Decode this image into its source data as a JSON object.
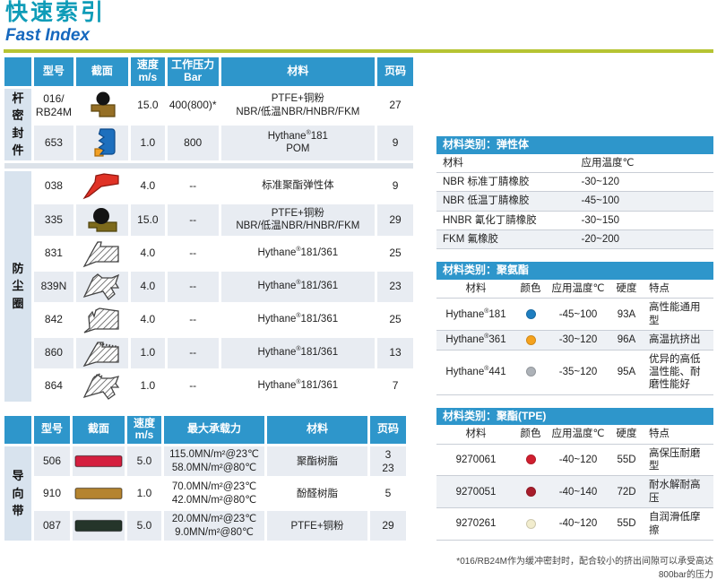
{
  "page": {
    "title_cn": "快速索引",
    "title_en": "Fast Index",
    "footnote": "*016/RB24M作为缓冲密封时，配合较小的挤出间隙可以承受高达800bar的压力"
  },
  "theme": {
    "header_blue": "#2e96cb",
    "title_teal": "#0f9cb8",
    "title_blue": "#1668be",
    "rule_green": "#b6c433",
    "row_shade": "#e8ecf2",
    "label_bg": "#d8e3ee"
  },
  "left_tables": {
    "table1": {
      "headers": [
        "",
        "型号",
        "截面",
        "速度\nm/s",
        "工作压力\nBar",
        "材料",
        "页码"
      ],
      "sections": [
        {
          "label": "杆密封件",
          "rows": [
            {
              "model": "016/\nRB24M",
              "icon": "buffer-seal-brown",
              "speed": "15.0",
              "pressure": "400(800)*",
              "material": [
                "PTFE+铜粉",
                "NBR/低温NBR/HNBR/FKM"
              ],
              "page": "27"
            },
            {
              "model": "653",
              "icon": "ucup-blue-orange",
              "speed": "1.0",
              "pressure": "800",
              "material": [
                "Hythane®181",
                "POM"
              ],
              "page": "9"
            }
          ]
        },
        {
          "label": "防尘圈",
          "rows": [
            {
              "model": "038",
              "icon": "wiper-red",
              "speed": "4.0",
              "pressure": "--",
              "material": [
                "标准聚酯弹性体"
              ],
              "page": "9"
            },
            {
              "model": "335",
              "icon": "buffer-seal-olive",
              "speed": "15.0",
              "pressure": "--",
              "material": [
                "PTFE+铜粉",
                "NBR/低温NBR/HNBR/FKM"
              ],
              "page": "29"
            },
            {
              "model": "831",
              "icon": "wiper-hatched-a",
              "speed": "4.0",
              "pressure": "--",
              "material": [
                "Hythane®181/361"
              ],
              "page": "25"
            },
            {
              "model": "839N",
              "icon": "wiper-hatched-b",
              "speed": "4.0",
              "pressure": "--",
              "material": [
                "Hythane®181/361"
              ],
              "page": "23"
            },
            {
              "model": "842",
              "icon": "wiper-hatched-c",
              "speed": "4.0",
              "pressure": "--",
              "material": [
                "Hythane®181/361"
              ],
              "page": "25"
            },
            {
              "model": "860",
              "icon": "wiper-hatched-d",
              "speed": "1.0",
              "pressure": "--",
              "material": [
                "Hythane®181/361"
              ],
              "page": "13"
            },
            {
              "model": "864",
              "icon": "wiper-hatched-e",
              "speed": "1.0",
              "pressure": "--",
              "material": [
                "Hythane®181/361"
              ],
              "page": "7"
            }
          ]
        }
      ]
    },
    "table2": {
      "headers": [
        "",
        "型号",
        "截面",
        "速度\nm/s",
        "最大承载力",
        "材料",
        "页码"
      ],
      "sections": [
        {
          "label": "导向带",
          "rows": [
            {
              "model": "506",
              "icon": "bar",
              "bar_color": "#d41f3f",
              "speed": "5.0",
              "pressure": "115.0MN/m²@23℃\n58.0MN/m²@80℃",
              "material": [
                "聚酯树脂"
              ],
              "page": "3\n23"
            },
            {
              "model": "910",
              "icon": "bar",
              "bar_color": "#b5842f",
              "speed": "1.0",
              "pressure": "70.0MN/m²@23℃\n42.0MN/m²@80℃",
              "material": [
                "酚醛树脂"
              ],
              "page": "5"
            },
            {
              "model": "087",
              "icon": "bar",
              "bar_color": "#25352a",
              "speed": "5.0",
              "pressure": "20.0MN/m²@23℃\n9.0MN/m²@80℃",
              "material": [
                "PTFE+铜粉"
              ],
              "page": "29"
            }
          ]
        }
      ]
    }
  },
  "right_tables": [
    {
      "title": "材料类别：弹性体",
      "columns": [
        "材料",
        "应用温度℃"
      ],
      "rows": [
        {
          "material": "NBR 标准丁腈橡胶",
          "temp": "-30~120"
        },
        {
          "material": "NBR 低温丁腈橡胶",
          "temp": "-45~100"
        },
        {
          "material": "HNBR 氰化丁腈橡胶",
          "temp": "-30~150"
        },
        {
          "material": "FKM 氟橡胶",
          "temp": "-20~200"
        }
      ]
    },
    {
      "title": "材料类别：聚氨酯",
      "columns": [
        "材料",
        "颜色",
        "应用温度℃",
        "硬度",
        "特点"
      ],
      "rows": [
        {
          "material": "Hythane®181",
          "color": "#1e7ec0",
          "temp": "-45~100",
          "hardness": "93A",
          "feature": "高性能通用型"
        },
        {
          "material": "Hythane®361",
          "color": "#f5a21d",
          "temp": "-30~120",
          "hardness": "96A",
          "feature": "高温抗挤出"
        },
        {
          "material": "Hythane®441",
          "color": "#adb2b8",
          "temp": "-35~120",
          "hardness": "95A",
          "feature": "优异的高低温性能、耐磨性能好"
        }
      ]
    },
    {
      "title": "材料类别：聚酯(TPE)",
      "columns": [
        "材料",
        "颜色",
        "应用温度℃",
        "硬度",
        "特点"
      ],
      "rows": [
        {
          "material": "9270061",
          "color": "#d01f2f",
          "temp": "-40~120",
          "hardness": "55D",
          "feature": "高保压耐磨型"
        },
        {
          "material": "9270051",
          "color": "#a81d2b",
          "temp": "-40~140",
          "hardness": "72D",
          "feature": "耐水解耐高压"
        },
        {
          "material": "9270261",
          "color": "#f2edce",
          "temp": "-40~120",
          "hardness": "55D",
          "feature": "自润滑低摩擦"
        }
      ]
    }
  ]
}
